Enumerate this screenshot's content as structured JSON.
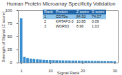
{
  "chart_data": {
    "type": "bar",
    "title": "Human Protein Microarray Specificity Validation",
    "x_label": "Signal Rank",
    "y_label": "Strength of Signal (Z score)",
    "x": [
      1,
      2,
      3,
      4,
      5,
      6,
      7,
      8,
      9,
      10,
      11,
      12,
      13,
      14,
      15,
      16,
      17,
      18,
      19,
      20,
      21,
      22,
      23,
      24,
      25,
      26,
      27,
      28,
      29,
      30
    ],
    "values": [
      84.93,
      10.85,
      8.96,
      7.5,
      6.8,
      6.3,
      5.9,
      5.5,
      5.2,
      5.0,
      4.8,
      4.6,
      4.4,
      4.2,
      4.1,
      3.9,
      3.8,
      3.7,
      3.6,
      3.5,
      3.4,
      3.3,
      3.2,
      3.1,
      3.0,
      2.9,
      2.8,
      2.7,
      2.6,
      2.5
    ],
    "color": "#3a8fd0",
    "xlim": [
      0,
      31
    ],
    "xticks": [
      1,
      10,
      20,
      30
    ],
    "ylim": [
      0,
      100
    ],
    "yticks": [
      0,
      25,
      50,
      75,
      100
    ],
    "grid": false,
    "table": {
      "columns": [
        "Rank",
        "Protein",
        "Z score",
        "S score"
      ],
      "rows": [
        [
          1,
          "CD79a",
          84.93,
          74.07
        ],
        [
          2,
          "KRTAP3-3",
          10.85,
          0.09
        ],
        [
          3,
          "WDR63",
          8.96,
          1.03
        ]
      ]
    }
  }
}
